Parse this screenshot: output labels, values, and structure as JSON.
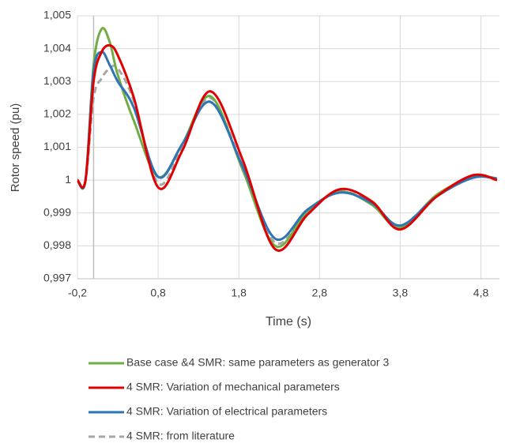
{
  "chart_data": {
    "type": "line",
    "x_label": "Time (s)",
    "y_label": "Rotor speed (pu)",
    "x": [
      -0.2,
      -0.1,
      0.0,
      0.1,
      0.2,
      0.3,
      0.5,
      0.8,
      1.1,
      1.45,
      1.85,
      2.25,
      2.65,
      3.05,
      3.45,
      3.8,
      4.25,
      4.7,
      5.0
    ],
    "series": [
      {
        "name": "Base case &4 SMR: same parameters as generator 3",
        "color": "#70ad47",
        "dash": false,
        "values": [
          1,
          1,
          1.0035,
          1.0046,
          1.0042,
          1.0032,
          1.0018,
          1.0001,
          1.0011,
          1.00255,
          1.0003,
          0.998,
          0.99905,
          0.99965,
          0.99925,
          0.99855,
          0.99955,
          1.0001,
          1.00005
        ]
      },
      {
        "name": "4 SMR: Variation of mechanical parameters",
        "color": "#e00000",
        "dash": false,
        "values": [
          1,
          1,
          1.003,
          1.0039,
          1.0041,
          1.0038,
          1.0025,
          0.99978,
          1.0009,
          1.0027,
          1.0006,
          0.9979,
          0.99895,
          0.99972,
          0.99935,
          0.9985,
          0.9995,
          1.00015,
          1.0
        ]
      },
      {
        "name": "4 SMR: Variation of electrical parameters",
        "color": "#2e75b6",
        "dash": false,
        "values": [
          1,
          1,
          1.0033,
          1.0039,
          1.0035,
          1.003,
          1.0022,
          1.0001,
          1.0011,
          1.00238,
          1.0004,
          0.99822,
          0.9991,
          0.99962,
          0.9993,
          0.99862,
          0.9995,
          1.00007,
          1.00005
        ]
      },
      {
        "name": "4 SMR: from literature",
        "color": "#a6a6a6",
        "dash": true,
        "values": [
          1,
          1,
          1.0025,
          1.0031,
          1.0034,
          1.0034,
          1.0024,
          0.9999,
          1.001,
          1.0025,
          1.0004,
          0.9981,
          0.99905,
          0.99965,
          0.9993,
          0.9986,
          0.9995,
          1.00008,
          1.00005
        ]
      }
    ],
    "xlim": [
      -0.2,
      5.03
    ],
    "ylim": [
      0.997,
      1.005
    ],
    "xticks": [
      {
        "value": -0.2,
        "label": "-0,2"
      },
      {
        "value": 0.8,
        "label": "0,8"
      },
      {
        "value": 1.8,
        "label": "1,8"
      },
      {
        "value": 2.8,
        "label": "2,8"
      },
      {
        "value": 3.8,
        "label": "3,8"
      },
      {
        "value": 4.8,
        "label": "4,8"
      }
    ],
    "yticks": [
      {
        "value": 0.997,
        "label": "0,997"
      },
      {
        "value": 0.998,
        "label": "0,998"
      },
      {
        "value": 0.999,
        "label": "0,999"
      },
      1,
      {
        "value": 1.001,
        "label": "1,001"
      },
      {
        "value": 1.002,
        "label": "1,002"
      },
      {
        "value": 1.003,
        "label": "1,003"
      },
      {
        "value": 1.004,
        "label": "1,004"
      },
      {
        "value": 1.005,
        "label": "1,005"
      }
    ],
    "grid": true,
    "legend": "bottom"
  }
}
